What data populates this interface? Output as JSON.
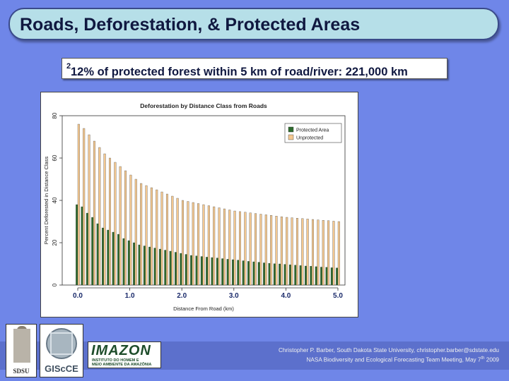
{
  "slide": {
    "title": "Roads, Deforestation, & Protected Areas",
    "subtitle_main": "12% of protected forest within 5 km of road/river: 221,000 km",
    "subtitle_sup": "2",
    "credit_line1": "Christopher P. Barber, South Dakota State University, christopher.barber@sdstate.edu",
    "credit_line2_pre": "NASA Biodiversity and Ecological Forecasting Team Meeting, May 7",
    "credit_line2_sup": "th",
    "credit_line2_post": " 2009"
  },
  "logos": {
    "sdsu": "SDSU",
    "giscce": "GIScCE",
    "imazon_name": "IMAZON",
    "imazon_sub1": "INSTITUTO DO HOMEM E",
    "imazon_sub2": "MEIO AMBIENTE DA AMAZÔNIA"
  },
  "chart_data": {
    "type": "bar",
    "title": "Deforestation by Distance Class from Roads",
    "xlabel": "Distance From Road (km)",
    "ylabel": "Percent Deforested in Distance Class",
    "ylim": [
      0,
      80
    ],
    "yticks": [
      0,
      20,
      40,
      60,
      80
    ],
    "xticks": [
      "0.0",
      "1.0",
      "2.0",
      "3.0",
      "4.0",
      "5.0"
    ],
    "xlim": [
      0,
      5
    ],
    "legend_position": "top-right",
    "categories": [
      0.0,
      0.1,
      0.2,
      0.3,
      0.4,
      0.5,
      0.6,
      0.7,
      0.8,
      0.9,
      1.0,
      1.1,
      1.2,
      1.3,
      1.4,
      1.5,
      1.6,
      1.7,
      1.8,
      1.9,
      2.0,
      2.1,
      2.2,
      2.3,
      2.4,
      2.5,
      2.6,
      2.7,
      2.8,
      2.9,
      3.0,
      3.1,
      3.2,
      3.3,
      3.4,
      3.5,
      3.6,
      3.7,
      3.8,
      3.9,
      4.0,
      4.1,
      4.2,
      4.3,
      4.4,
      4.5,
      4.6,
      4.7,
      4.8,
      4.9,
      5.0
    ],
    "series": [
      {
        "name": "Protected Area",
        "color": "#2e6b2e",
        "values": [
          38,
          37,
          34,
          32,
          29,
          27,
          26,
          25,
          24,
          22,
          21,
          20,
          19,
          18.5,
          18,
          17.5,
          17,
          16.5,
          16,
          15.5,
          15,
          14.5,
          14,
          13.8,
          13.5,
          13.2,
          13,
          12.8,
          12.5,
          12.2,
          12,
          11.8,
          11.5,
          11.2,
          11,
          10.8,
          10.5,
          10.3,
          10.1,
          10,
          9.8,
          9.6,
          9.4,
          9.2,
          9,
          8.9,
          8.7,
          8.5,
          8.4,
          8.2,
          8.1
        ]
      },
      {
        "name": "Unprotected",
        "color": "#f4c890",
        "values": [
          76,
          74,
          71,
          68,
          65,
          62,
          60,
          58,
          56,
          54,
          52,
          50,
          48,
          47,
          46,
          45,
          44,
          43,
          42,
          41,
          40,
          39.5,
          39,
          38.5,
          38,
          37.5,
          37,
          36.5,
          36,
          35.5,
          35,
          34.7,
          34.4,
          34.1,
          33.8,
          33.5,
          33.2,
          32.9,
          32.6,
          32.3,
          32,
          31.8,
          31.6,
          31.4,
          31.2,
          31,
          30.8,
          30.6,
          30.4,
          30.2,
          30
        ]
      }
    ]
  }
}
